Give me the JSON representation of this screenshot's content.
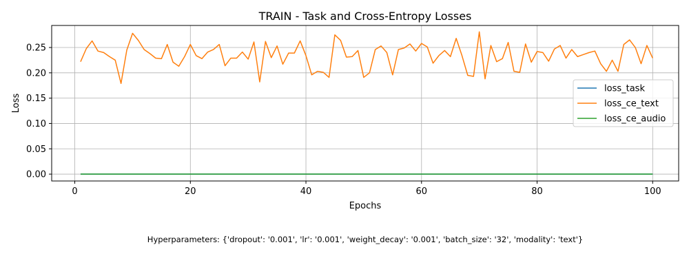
{
  "chart_data": {
    "type": "line",
    "title": "TRAIN - Task and Cross-Entropy Losses",
    "xlabel": "Epochs",
    "ylabel": "Loss",
    "xlim": [
      -4,
      104.5
    ],
    "ylim": [
      -0.0135,
      0.2935
    ],
    "xticks": [
      0,
      20,
      40,
      60,
      80,
      100
    ],
    "xtick_labels": [
      "0",
      "20",
      "40",
      "60",
      "80",
      "100"
    ],
    "yticks": [
      0.0,
      0.05,
      0.1,
      0.15,
      0.2,
      0.25
    ],
    "ytick_labels": [
      "0.00",
      "0.05",
      "0.10",
      "0.15",
      "0.20",
      "0.25"
    ],
    "grid": true,
    "legend_position": "center-right",
    "x": [
      1,
      2,
      3,
      4,
      5,
      6,
      7,
      8,
      9,
      10,
      11,
      12,
      13,
      14,
      15,
      16,
      17,
      18,
      19,
      20,
      21,
      22,
      23,
      24,
      25,
      26,
      27,
      28,
      29,
      30,
      31,
      32,
      33,
      34,
      35,
      36,
      37,
      38,
      39,
      40,
      41,
      42,
      43,
      44,
      45,
      46,
      47,
      48,
      49,
      50,
      51,
      52,
      53,
      54,
      55,
      56,
      57,
      58,
      59,
      60,
      61,
      62,
      63,
      64,
      65,
      66,
      67,
      68,
      69,
      70,
      71,
      72,
      73,
      74,
      75,
      76,
      77,
      78,
      79,
      80,
      81,
      82,
      83,
      84,
      85,
      86,
      87,
      88,
      89,
      90,
      91,
      92,
      93,
      94,
      95,
      96,
      97,
      98,
      99,
      100
    ],
    "series": [
      {
        "name": "loss_task",
        "color": "#1f77b4",
        "values": [
          0,
          0,
          0,
          0,
          0,
          0,
          0,
          0,
          0,
          0,
          0,
          0,
          0,
          0,
          0,
          0,
          0,
          0,
          0,
          0,
          0,
          0,
          0,
          0,
          0,
          0,
          0,
          0,
          0,
          0,
          0,
          0,
          0,
          0,
          0,
          0,
          0,
          0,
          0,
          0,
          0,
          0,
          0,
          0,
          0,
          0,
          0,
          0,
          0,
          0,
          0,
          0,
          0,
          0,
          0,
          0,
          0,
          0,
          0,
          0,
          0,
          0,
          0,
          0,
          0,
          0,
          0,
          0,
          0,
          0,
          0,
          0,
          0,
          0,
          0,
          0,
          0,
          0,
          0,
          0,
          0,
          0,
          0,
          0,
          0,
          0,
          0,
          0,
          0,
          0,
          0,
          0,
          0,
          0,
          0,
          0,
          0,
          0,
          0,
          0
        ]
      },
      {
        "name": "loss_ce_text",
        "color": "#ff7f0e",
        "values": [
          0.222,
          0.248,
          0.263,
          0.243,
          0.24,
          0.232,
          0.225,
          0.179,
          0.245,
          0.278,
          0.264,
          0.246,
          0.238,
          0.229,
          0.228,
          0.256,
          0.221,
          0.213,
          0.232,
          0.256,
          0.234,
          0.228,
          0.241,
          0.246,
          0.256,
          0.214,
          0.229,
          0.229,
          0.241,
          0.227,
          0.261,
          0.182,
          0.262,
          0.23,
          0.253,
          0.217,
          0.239,
          0.239,
          0.263,
          0.234,
          0.196,
          0.203,
          0.201,
          0.191,
          0.275,
          0.264,
          0.231,
          0.232,
          0.244,
          0.191,
          0.2,
          0.246,
          0.253,
          0.24,
          0.196,
          0.246,
          0.249,
          0.257,
          0.243,
          0.258,
          0.251,
          0.219,
          0.234,
          0.244,
          0.232,
          0.268,
          0.234,
          0.195,
          0.193,
          0.281,
          0.188,
          0.254,
          0.222,
          0.228,
          0.26,
          0.203,
          0.201,
          0.257,
          0.221,
          0.242,
          0.24,
          0.223,
          0.247,
          0.254,
          0.229,
          0.246,
          0.232,
          0.236,
          0.24,
          0.243,
          0.218,
          0.203,
          0.225,
          0.203,
          0.256,
          0.265,
          0.25,
          0.218,
          0.254,
          0.229
        ]
      },
      {
        "name": "loss_ce_audio",
        "color": "#2ca02c",
        "values": [
          0,
          0,
          0,
          0,
          0,
          0,
          0,
          0,
          0,
          0,
          0,
          0,
          0,
          0,
          0,
          0,
          0,
          0,
          0,
          0,
          0,
          0,
          0,
          0,
          0,
          0,
          0,
          0,
          0,
          0,
          0,
          0,
          0,
          0,
          0,
          0,
          0,
          0,
          0,
          0,
          0,
          0,
          0,
          0,
          0,
          0,
          0,
          0,
          0,
          0,
          0,
          0,
          0,
          0,
          0,
          0,
          0,
          0,
          0,
          0,
          0,
          0,
          0,
          0,
          0,
          0,
          0,
          0,
          0,
          0,
          0,
          0,
          0,
          0,
          0,
          0,
          0,
          0,
          0,
          0,
          0,
          0,
          0,
          0,
          0,
          0,
          0,
          0,
          0,
          0,
          0,
          0,
          0,
          0,
          0,
          0,
          0,
          0,
          0,
          0
        ]
      }
    ]
  },
  "footer": {
    "hyperparameters": "Hyperparameters: {'dropout': '0.001', 'lr': '0.001', 'weight_decay': '0.001', 'batch_size': '32', 'modality': 'text'}"
  }
}
